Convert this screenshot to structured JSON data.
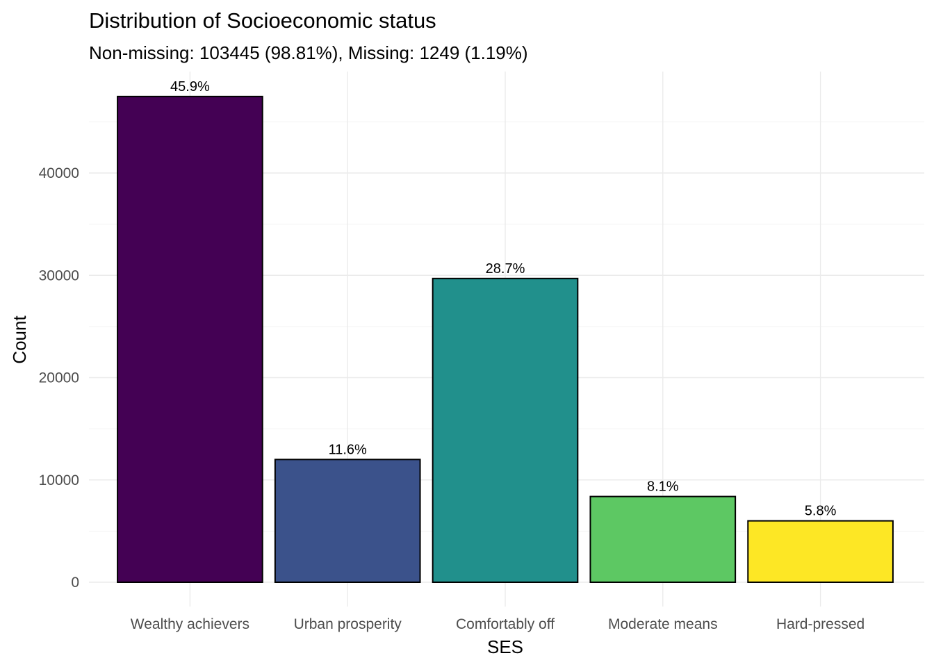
{
  "chart_data": {
    "type": "bar",
    "title": "Distribution of Socioeconomic status",
    "subtitle": "Non-missing: 103445 (98.81%), Missing: 1249 (1.19%)",
    "xlabel": "SES",
    "ylabel": "Count",
    "categories": [
      "Wealthy achievers",
      "Urban prosperity",
      "Comfortably off",
      "Moderate means",
      "Hard-pressed"
    ],
    "values": [
      47480,
      12000,
      29690,
      8380,
      6000
    ],
    "labels": [
      "45.9%",
      "11.6%",
      "28.7%",
      "8.1%",
      "5.8%"
    ],
    "colors": [
      "#440154",
      "#3b528b",
      "#21908c",
      "#5dc863",
      "#fde725"
    ],
    "ylim": [
      0,
      50000
    ],
    "yticks": [
      0,
      10000,
      20000,
      30000,
      40000
    ],
    "grid": true,
    "legend": "none"
  }
}
